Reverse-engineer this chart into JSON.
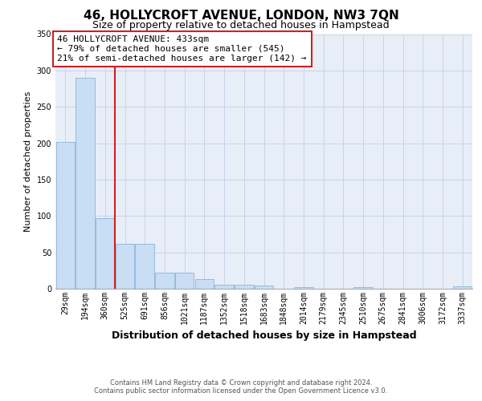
{
  "title": "46, HOLLYCROFT AVENUE, LONDON, NW3 7QN",
  "subtitle": "Size of property relative to detached houses in Hampstead",
  "xlabel": "Distribution of detached houses by size in Hampstead",
  "ylabel": "Number of detached properties",
  "categories": [
    "29sqm",
    "194sqm",
    "360sqm",
    "525sqm",
    "691sqm",
    "856sqm",
    "1021sqm",
    "1187sqm",
    "1352sqm",
    "1518sqm",
    "1683sqm",
    "1848sqm",
    "2014sqm",
    "2179sqm",
    "2345sqm",
    "2510sqm",
    "2675sqm",
    "2841sqm",
    "3006sqm",
    "3172sqm",
    "3337sqm"
  ],
  "values": [
    202,
    290,
    97,
    62,
    62,
    22,
    22,
    13,
    6,
    5,
    4,
    0,
    2,
    0,
    0,
    2,
    0,
    0,
    0,
    0,
    3
  ],
  "bar_color": "#c9ddf5",
  "bar_edge_color": "#8ab4d8",
  "vline_x_index": 2,
  "vline_color": "#cc2222",
  "annotation_text": "46 HOLLYCROFT AVENUE: 433sqm\n← 79% of detached houses are smaller (545)\n21% of semi-detached houses are larger (142) →",
  "annotation_box_color": "#cc2222",
  "ylim": [
    0,
    350
  ],
  "yticks": [
    0,
    50,
    100,
    150,
    200,
    250,
    300,
    350
  ],
  "grid_color": "#c8d4e8",
  "background_color": "#e8eef8",
  "footer_text": "Contains HM Land Registry data © Crown copyright and database right 2024.\nContains public sector information licensed under the Open Government Licence v3.0.",
  "title_fontsize": 11,
  "subtitle_fontsize": 9,
  "xlabel_fontsize": 9,
  "ylabel_fontsize": 8,
  "tick_fontsize": 7,
  "annotation_fontsize": 8,
  "footer_fontsize": 6
}
